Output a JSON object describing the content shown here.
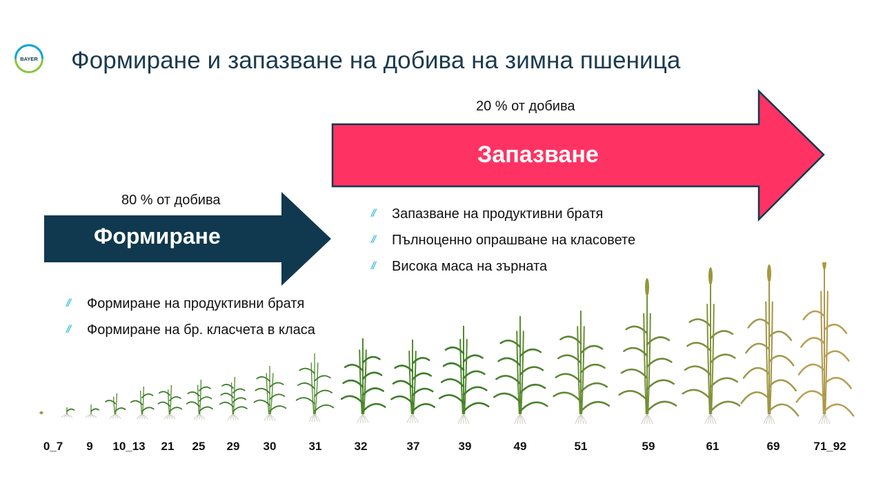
{
  "header": {
    "logo_text": "BAYER",
    "title": "Формиране и запазване на добива на зимна пшеница"
  },
  "colors": {
    "navy": "#10384f",
    "red": "#ff3363",
    "bullet": "#24b4d9"
  },
  "retention": {
    "percent_label": "20 % от добива",
    "arrow_label": "Запазване",
    "bullets": [
      "Запазване на продуктивни братя",
      "Пълноценно опрашване на класовете",
      "Висока маса на зърната"
    ]
  },
  "formation": {
    "percent_label": "80 % от добива",
    "arrow_label": "Формиране",
    "bullets": [
      "Формиране на продуктивни братя",
      "Формиране на бр. класчета в класа"
    ]
  },
  "bullet_mark": "//",
  "growth_stages": [
    "0_7",
    "9",
    "10_13",
    "21",
    "25",
    "29",
    "30",
    "31",
    "32",
    "37",
    "39",
    "49",
    "51",
    "59",
    "61",
    "69",
    "71_92"
  ]
}
